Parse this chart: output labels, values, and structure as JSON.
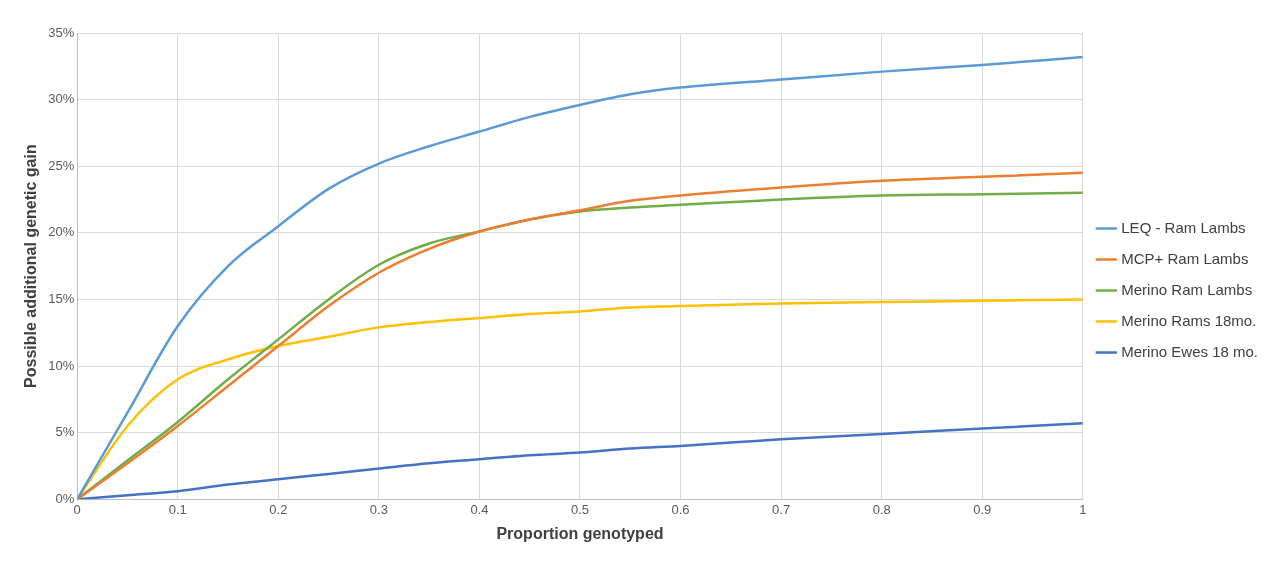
{
  "chart_data": {
    "type": "line",
    "xlabel": "Proportion genotyped",
    "ylabel": "Possible additional genetic gain",
    "x": [
      0,
      0.05,
      0.1,
      0.15,
      0.2,
      0.25,
      0.3,
      0.35,
      0.4,
      0.45,
      0.5,
      0.55,
      0.6,
      0.7,
      0.8,
      0.9,
      1
    ],
    "series": [
      {
        "name": "LEQ - Ram Lambs",
        "color": "#5b9bd5",
        "values": [
          0,
          6.5,
          13,
          17.5,
          20.5,
          23.3,
          25.2,
          26.5,
          27.6,
          28.7,
          29.6,
          30.4,
          30.9,
          31.5,
          32.1,
          32.6,
          33.2
        ]
      },
      {
        "name": "MCP+ Ram Lambs",
        "color": "#ed7d31",
        "values": [
          0,
          2.7,
          5.5,
          8.5,
          11.5,
          14.5,
          17,
          18.8,
          20.1,
          21,
          21.7,
          22.4,
          22.8,
          23.4,
          23.9,
          24.2,
          24.5
        ]
      },
      {
        "name": "Merino Ram Lambs",
        "color": "#70ad47",
        "values": [
          0,
          2.9,
          5.8,
          9,
          12,
          15,
          17.6,
          19.2,
          20.1,
          21,
          21.6,
          21.9,
          22.1,
          22.5,
          22.8,
          22.9,
          23
        ]
      },
      {
        "name": "Merino Rams 18mo.",
        "color": "#ffc000",
        "values": [
          0,
          5.5,
          9,
          10.5,
          11.5,
          12.2,
          12.9,
          13.3,
          13.6,
          13.9,
          14.1,
          14.4,
          14.5,
          14.7,
          14.8,
          14.9,
          15
        ]
      },
      {
        "name": "Merino Ewes 18 mo.",
        "color": "#4472c4",
        "values": [
          0,
          0.3,
          0.6,
          1.1,
          1.5,
          1.9,
          2.3,
          2.7,
          3,
          3.3,
          3.5,
          3.8,
          4,
          4.5,
          4.9,
          5.3,
          5.7
        ]
      }
    ],
    "xlim": [
      0,
      1
    ],
    "xticks": [
      0,
      0.1,
      0.2,
      0.3,
      0.4,
      0.5,
      0.6,
      0.7,
      0.8,
      0.9,
      1
    ],
    "ylim": [
      0,
      35
    ],
    "yticks": [
      {
        "value": 0,
        "label": "0%"
      },
      {
        "value": 5,
        "label": "5%"
      },
      {
        "value": 10,
        "label": "10%"
      },
      {
        "value": 15,
        "label": "15%"
      },
      {
        "value": 20,
        "label": "20%"
      },
      {
        "value": 25,
        "label": "25%"
      },
      {
        "value": 30,
        "label": "30%"
      },
      {
        "value": 35,
        "label": "35%"
      }
    ],
    "grid": true,
    "legend": "right",
    "marker": "none",
    "line_style": "solid"
  }
}
